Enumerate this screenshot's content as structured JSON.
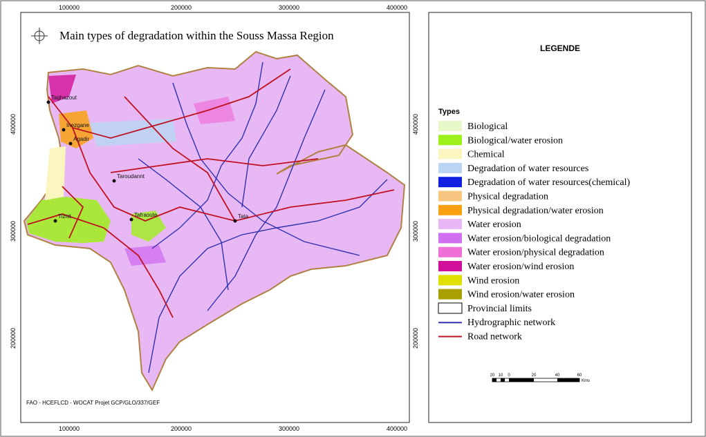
{
  "map": {
    "title": "Main types of degradation within the Souss Massa Region",
    "x_ticks": [
      "100000",
      "200000",
      "300000",
      "400000"
    ],
    "y_ticks": [
      "400000",
      "300000",
      "200000"
    ],
    "places": [
      "Taghazout",
      "Agadir",
      "Inezgane",
      "Taroudannt",
      "Tiznit",
      "Tafraoute",
      "Tata"
    ],
    "credit": "FAO - HCEFLCD - WOCAT Projet GCP/GLO/337/GEF",
    "scale_bar": {
      "labels": [
        "20",
        "10",
        "0",
        "20",
        "40",
        "60"
      ],
      "unit": "Kms"
    }
  },
  "legend": {
    "title": "LEGENDE",
    "subtitle": "Types",
    "items": [
      {
        "label": "Biological",
        "color": "#e8f8c8",
        "symbol": "box"
      },
      {
        "label": "Biological/water erosion",
        "color": "#9ef01a",
        "symbol": "box"
      },
      {
        "label": "Chemical",
        "color": "#fbf5c0",
        "symbol": "box"
      },
      {
        "label": "Degradation of water resources",
        "color": "#bcd4f4",
        "symbol": "box"
      },
      {
        "label": "Degradation of water resources(chemical)",
        "color": "#1020e0",
        "symbol": "box"
      },
      {
        "label": "Physical degradation",
        "color": "#f8c680",
        "symbol": "box"
      },
      {
        "label": "Physical degradation/water erosion",
        "color": "#f8a010",
        "symbol": "box"
      },
      {
        "label": "Water erosion",
        "color": "#e8b8f4",
        "symbol": "box"
      },
      {
        "label": "Water erosion/biological degradation",
        "color": "#d070f0",
        "symbol": "box"
      },
      {
        "label": "Water erosion/physical degradation",
        "color": "#f070d8",
        "symbol": "box"
      },
      {
        "label": "Water erosion/wind erosion",
        "color": "#d0109a",
        "symbol": "box"
      },
      {
        "label": "Wind erosion",
        "color": "#e0e000",
        "symbol": "box"
      },
      {
        "label": "Wind erosion/water erosion",
        "color": "#a8a000",
        "symbol": "box"
      },
      {
        "label": "Provincial limits",
        "color": "#ffffff",
        "symbol": "box"
      },
      {
        "label": "Hydrographic network",
        "color": "#3030b0",
        "symbol": "line"
      },
      {
        "label": "Road network",
        "color": "#c01020",
        "symbol": "line"
      }
    ]
  }
}
